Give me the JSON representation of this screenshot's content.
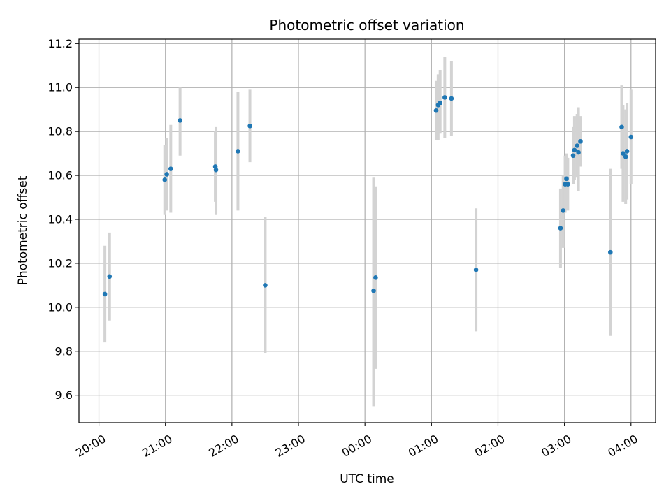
{
  "chart_data": {
    "type": "scatter",
    "title": "Photometric offset variation",
    "xlabel": "UTC time",
    "ylabel": "Photometric offset",
    "x_unit": "hours since 20:00 UTC",
    "xlim": [
      -0.3,
      8.37
    ],
    "ylim": [
      9.475,
      11.22
    ],
    "x_ticks": [
      {
        "value": 0,
        "label": "20:00"
      },
      {
        "value": 1,
        "label": "21:00"
      },
      {
        "value": 2,
        "label": "22:00"
      },
      {
        "value": 3,
        "label": "23:00"
      },
      {
        "value": 4,
        "label": "00:00"
      },
      {
        "value": 5,
        "label": "01:00"
      },
      {
        "value": 6,
        "label": "02:00"
      },
      {
        "value": 7,
        "label": "03:00"
      },
      {
        "value": 8,
        "label": "04:00"
      }
    ],
    "y_ticks": [
      {
        "value": 9.6,
        "label": "9.6"
      },
      {
        "value": 9.8,
        "label": "9.8"
      },
      {
        "value": 10.0,
        "label": "10.0"
      },
      {
        "value": 10.2,
        "label": "10.2"
      },
      {
        "value": 10.4,
        "label": "10.4"
      },
      {
        "value": 10.6,
        "label": "10.6"
      },
      {
        "value": 10.8,
        "label": "10.8"
      },
      {
        "value": 11.0,
        "label": "11.0"
      },
      {
        "value": 11.2,
        "label": "11.2"
      }
    ],
    "grid": true,
    "marker_color": "#1f77b4",
    "errorbar_color": "#d3d3d3",
    "points": [
      {
        "x": 0.09,
        "y": 10.06,
        "lo": 9.84,
        "hi": 10.28
      },
      {
        "x": 0.16,
        "y": 10.14,
        "lo": 9.94,
        "hi": 10.34
      },
      {
        "x": 0.99,
        "y": 10.58,
        "lo": 10.42,
        "hi": 10.74
      },
      {
        "x": 1.02,
        "y": 10.605,
        "lo": 10.44,
        "hi": 10.77
      },
      {
        "x": 1.08,
        "y": 10.63,
        "lo": 10.43,
        "hi": 10.83
      },
      {
        "x": 1.22,
        "y": 10.85,
        "lo": 10.69,
        "hi": 11.0
      },
      {
        "x": 1.75,
        "y": 10.64,
        "lo": 10.48,
        "hi": 10.8
      },
      {
        "x": 1.76,
        "y": 10.625,
        "lo": 10.42,
        "hi": 10.82
      },
      {
        "x": 2.09,
        "y": 10.71,
        "lo": 10.44,
        "hi": 10.98
      },
      {
        "x": 2.27,
        "y": 10.825,
        "lo": 10.66,
        "hi": 10.99
      },
      {
        "x": 2.5,
        "y": 10.1,
        "lo": 9.79,
        "hi": 10.41
      },
      {
        "x": 4.13,
        "y": 10.075,
        "lo": 9.55,
        "hi": 10.59
      },
      {
        "x": 4.16,
        "y": 10.135,
        "lo": 9.72,
        "hi": 10.55
      },
      {
        "x": 5.07,
        "y": 10.895,
        "lo": 10.76,
        "hi": 11.03
      },
      {
        "x": 5.1,
        "y": 10.92,
        "lo": 10.76,
        "hi": 11.06
      },
      {
        "x": 5.13,
        "y": 10.93,
        "lo": 10.79,
        "hi": 11.08
      },
      {
        "x": 5.2,
        "y": 10.955,
        "lo": 10.77,
        "hi": 11.14
      },
      {
        "x": 5.3,
        "y": 10.95,
        "lo": 10.78,
        "hi": 11.12
      },
      {
        "x": 5.67,
        "y": 10.17,
        "lo": 9.89,
        "hi": 10.45
      },
      {
        "x": 6.94,
        "y": 10.36,
        "lo": 10.18,
        "hi": 10.54
      },
      {
        "x": 6.98,
        "y": 10.44,
        "lo": 10.27,
        "hi": 10.6
      },
      {
        "x": 7.01,
        "y": 10.56,
        "lo": 10.43,
        "hi": 10.69
      },
      {
        "x": 7.03,
        "y": 10.585,
        "lo": 10.47,
        "hi": 10.7
      },
      {
        "x": 7.05,
        "y": 10.56,
        "lo": 10.44,
        "hi": 10.68
      },
      {
        "x": 7.13,
        "y": 10.69,
        "lo": 10.56,
        "hi": 10.82
      },
      {
        "x": 7.15,
        "y": 10.715,
        "lo": 10.58,
        "hi": 10.87
      },
      {
        "x": 7.19,
        "y": 10.735,
        "lo": 10.59,
        "hi": 10.88
      },
      {
        "x": 7.21,
        "y": 10.705,
        "lo": 10.53,
        "hi": 10.91
      },
      {
        "x": 7.24,
        "y": 10.755,
        "lo": 10.64,
        "hi": 10.87
      },
      {
        "x": 7.69,
        "y": 10.25,
        "lo": 9.87,
        "hi": 10.63
      },
      {
        "x": 7.86,
        "y": 10.82,
        "lo": 10.63,
        "hi": 11.01
      },
      {
        "x": 7.88,
        "y": 10.7,
        "lo": 10.48,
        "hi": 10.92
      },
      {
        "x": 7.92,
        "y": 10.685,
        "lo": 10.47,
        "hi": 10.9
      },
      {
        "x": 7.94,
        "y": 10.71,
        "lo": 10.49,
        "hi": 10.93
      },
      {
        "x": 8.0,
        "y": 10.775,
        "lo": 10.56,
        "hi": 10.99
      }
    ]
  }
}
